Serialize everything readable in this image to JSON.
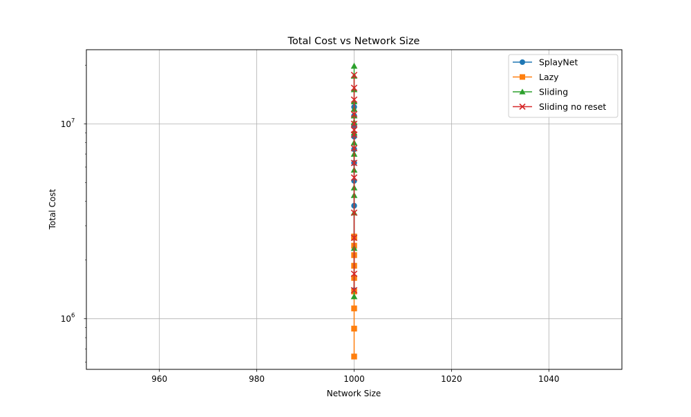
{
  "chart_data": {
    "type": "line",
    "title": "Total Cost vs Network Size",
    "xlabel": "Network Size",
    "ylabel": "Total Cost",
    "xlim": [
      945,
      1055
    ],
    "ylim": [
      550000,
      24000000
    ],
    "xscale": "linear",
    "yscale": "log",
    "xticks": [
      960,
      980,
      1000,
      1020,
      1040
    ],
    "yticks": [
      {
        "value": 1000000,
        "label_base": "10",
        "label_exp": "6"
      },
      {
        "value": 10000000,
        "label_base": "10",
        "label_exp": "7"
      }
    ],
    "grid": true,
    "legend_position": "top-right",
    "series": [
      {
        "name": "SplayNet",
        "color": "#1f77b4",
        "marker": "circle",
        "x": [
          1000,
          1000,
          1000,
          1000,
          1000,
          1000,
          1000,
          1000,
          1000,
          1000
        ],
        "values": [
          1400000,
          2600000,
          3800000,
          5100000,
          6300000,
          7400000,
          8600000,
          9800000,
          11000000,
          12200000
        ]
      },
      {
        "name": "Lazy",
        "color": "#ff7f0e",
        "marker": "square",
        "x": [
          1000,
          1000,
          1000,
          1000,
          1000,
          1000,
          1000,
          1000,
          1000,
          1000
        ],
        "values": [
          640000,
          890000,
          1130000,
          1380000,
          1620000,
          1870000,
          2120000,
          2370000,
          2610000,
          2640000
        ]
      },
      {
        "name": "Sliding",
        "color": "#2ca02c",
        "marker": "triangle",
        "x": [
          1000,
          1000,
          1000,
          1000,
          1000,
          1000,
          1000,
          1000,
          1000,
          1000,
          1000,
          1000,
          1000,
          1000,
          1000,
          1000
        ],
        "values": [
          1300000,
          2300000,
          3500000,
          4300000,
          4700000,
          5800000,
          7000000,
          8000000,
          9000000,
          10200000,
          11000000,
          11900000,
          13000000,
          15000000,
          17600000,
          19800000
        ]
      },
      {
        "name": "Sliding no reset",
        "color": "#d62728",
        "marker": "x",
        "x": [
          1000,
          1000,
          1000,
          1000,
          1000,
          1000,
          1000,
          1000,
          1000,
          1000,
          1000,
          1000,
          1000,
          1000
        ],
        "values": [
          1400000,
          1700000,
          2600000,
          3500000,
          5300000,
          6300000,
          7500000,
          8800000,
          9300000,
          10000000,
          11200000,
          13300000,
          15300000,
          17800000
        ]
      }
    ]
  }
}
